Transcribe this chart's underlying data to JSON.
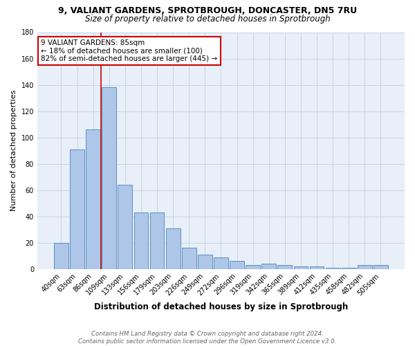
{
  "title_line1": "9, VALIANT GARDENS, SPROTBROUGH, DONCASTER, DN5 7RU",
  "title_line2": "Size of property relative to detached houses in Sprotbrough",
  "xlabel": "Distribution of detached houses by size in Sprotbrough",
  "ylabel": "Number of detached properties",
  "bar_labels": [
    "40sqm",
    "63sqm",
    "86sqm",
    "109sqm",
    "133sqm",
    "156sqm",
    "179sqm",
    "203sqm",
    "226sqm",
    "249sqm",
    "272sqm",
    "296sqm",
    "319sqm",
    "342sqm",
    "365sqm",
    "389sqm",
    "412sqm",
    "435sqm",
    "458sqm",
    "482sqm",
    "505sqm"
  ],
  "bar_values": [
    20,
    91,
    106,
    138,
    64,
    43,
    43,
    31,
    16,
    11,
    9,
    6,
    3,
    4,
    3,
    2,
    2,
    1,
    1,
    3,
    3
  ],
  "bar_color": "#aec6e8",
  "bar_edge_color": "#5a8fc2",
  "grid_color": "#c8d4e0",
  "background_color": "#e8eff8",
  "vline_color": "#cc0000",
  "annotation_text": "9 VALIANT GARDENS: 85sqm\n← 18% of detached houses are smaller (100)\n82% of semi-detached houses are larger (445) →",
  "annotation_box_color": "#ffffff",
  "annotation_box_edge": "#cc0000",
  "ylim": [
    0,
    180
  ],
  "yticks": [
    0,
    20,
    40,
    60,
    80,
    100,
    120,
    140,
    160,
    180
  ],
  "footnote": "Contains HM Land Registry data © Crown copyright and database right 2024.\nContains public sector information licensed under the Open Government Licence v3.0."
}
